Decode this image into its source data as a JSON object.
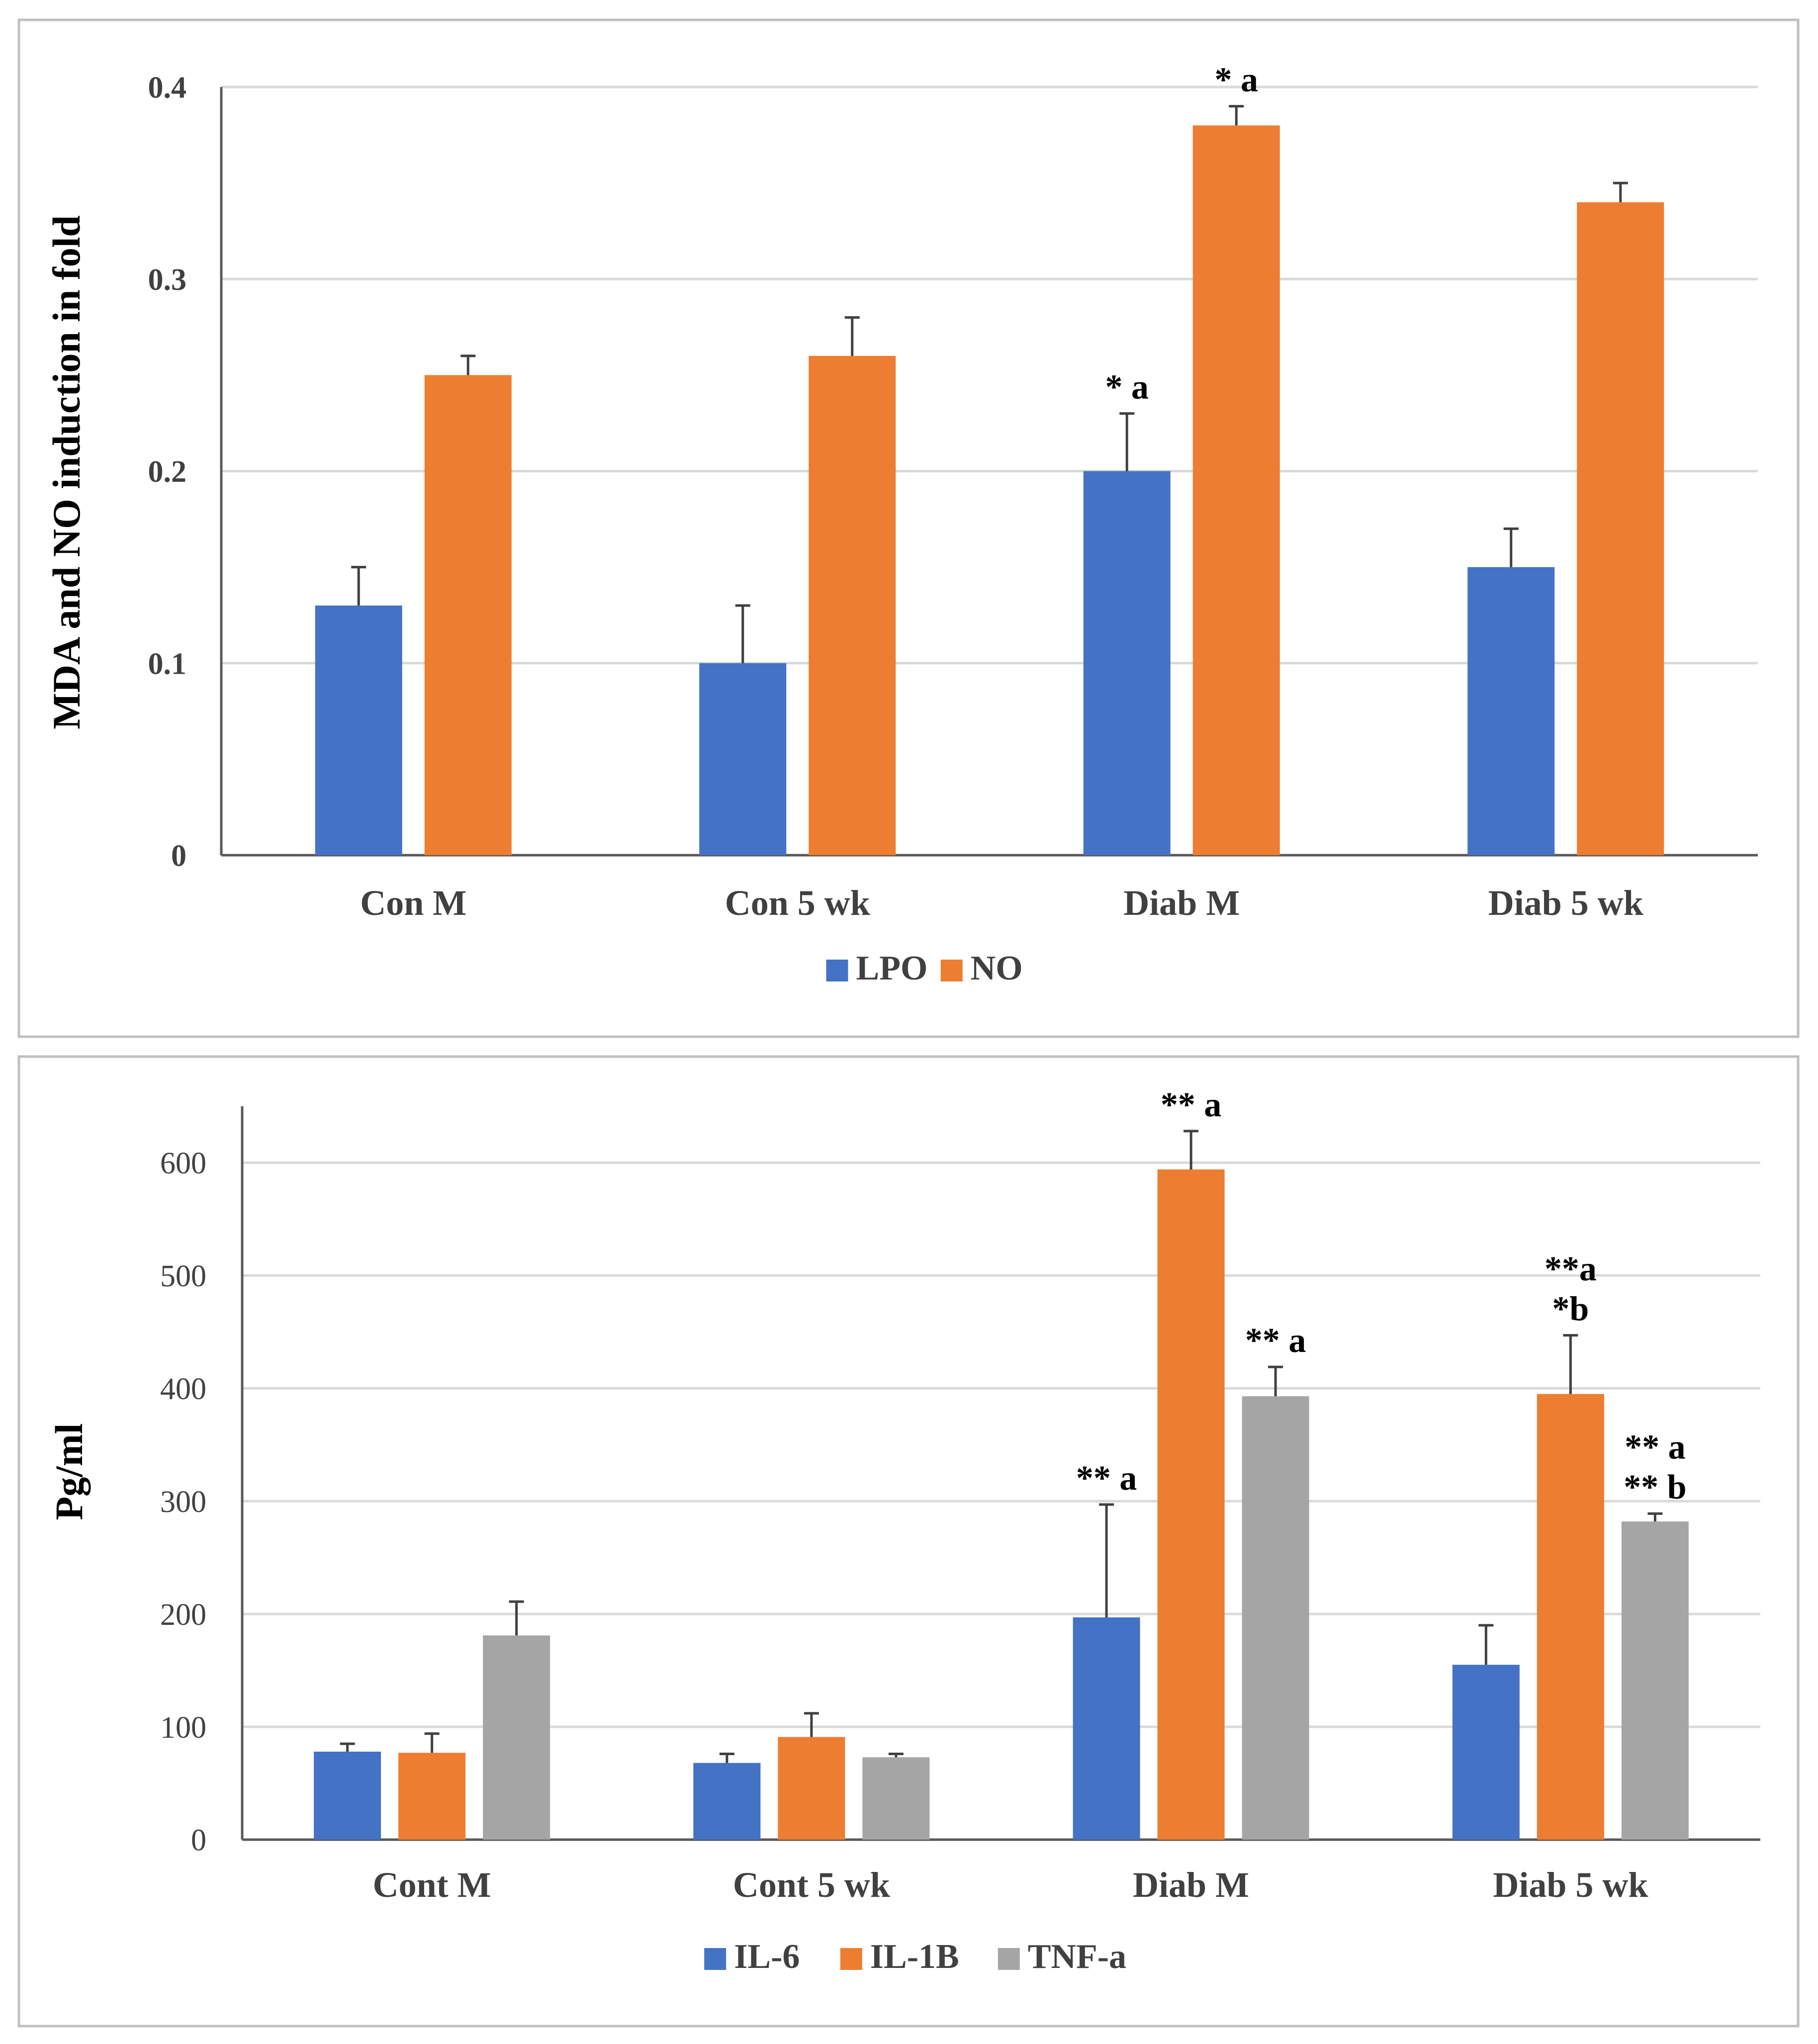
{
  "chart_data": [
    {
      "type": "bar",
      "title": "",
      "xlabel": "",
      "ylabel": "MDA and NO induction in fold",
      "ylim": [
        0,
        0.4
      ],
      "yticks": [
        0,
        0.1,
        0.2,
        0.3,
        0.4
      ],
      "ytick_labels": [
        "0",
        "0.1",
        "0.2",
        "0.3",
        "0.4"
      ],
      "grid": true,
      "legend_position": "bottom",
      "categories": [
        "Con M",
        "Con 5 wk",
        "Diab M",
        "Diab 5 wk"
      ],
      "series": [
        {
          "name": "LPO",
          "color": "#4472c4",
          "values": [
            0.13,
            0.1,
            0.2,
            0.15
          ],
          "errors": [
            0.02,
            0.03,
            0.03,
            0.02
          ],
          "annotations": [
            [],
            [],
            [
              "* a"
            ],
            []
          ]
        },
        {
          "name": "NO",
          "color": "#ed7d31",
          "values": [
            0.25,
            0.26,
            0.38,
            0.34
          ],
          "errors": [
            0.01,
            0.02,
            0.01,
            0.01
          ],
          "annotations": [
            [],
            [],
            [
              "* a"
            ],
            []
          ]
        }
      ]
    },
    {
      "type": "bar",
      "title": "",
      "xlabel": "",
      "ylabel": "Pg/ml",
      "ylim": [
        0,
        650
      ],
      "yticks": [
        0,
        100,
        200,
        300,
        400,
        500,
        600
      ],
      "ytick_labels": [
        "0",
        "100",
        "200",
        "300",
        "400",
        "500",
        "600"
      ],
      "grid": true,
      "legend_position": "bottom",
      "categories": [
        "Cont M",
        "Cont 5 wk",
        "Diab M",
        "Diab 5 wk"
      ],
      "series": [
        {
          "name": "IL-6",
          "color": "#4472c4",
          "values": [
            78,
            68,
            197,
            155
          ],
          "errors": [
            7,
            8,
            100,
            35
          ],
          "annotations": [
            [],
            [],
            [
              "** a"
            ],
            []
          ]
        },
        {
          "name": "IL-1B",
          "color": "#ed7d31",
          "values": [
            77,
            91,
            594,
            395
          ],
          "errors": [
            17,
            21,
            34,
            52
          ],
          "annotations": [
            [],
            [],
            [
              "** a"
            ],
            [
              "**a",
              "*b"
            ]
          ]
        },
        {
          "name": "TNF-a",
          "color": "#a5a5a5",
          "values": [
            181,
            73,
            393,
            282
          ],
          "errors": [
            30,
            3,
            26,
            7
          ],
          "annotations": [
            [],
            [],
            [
              "** a"
            ],
            [
              "** a",
              "** b"
            ]
          ]
        }
      ]
    }
  ]
}
